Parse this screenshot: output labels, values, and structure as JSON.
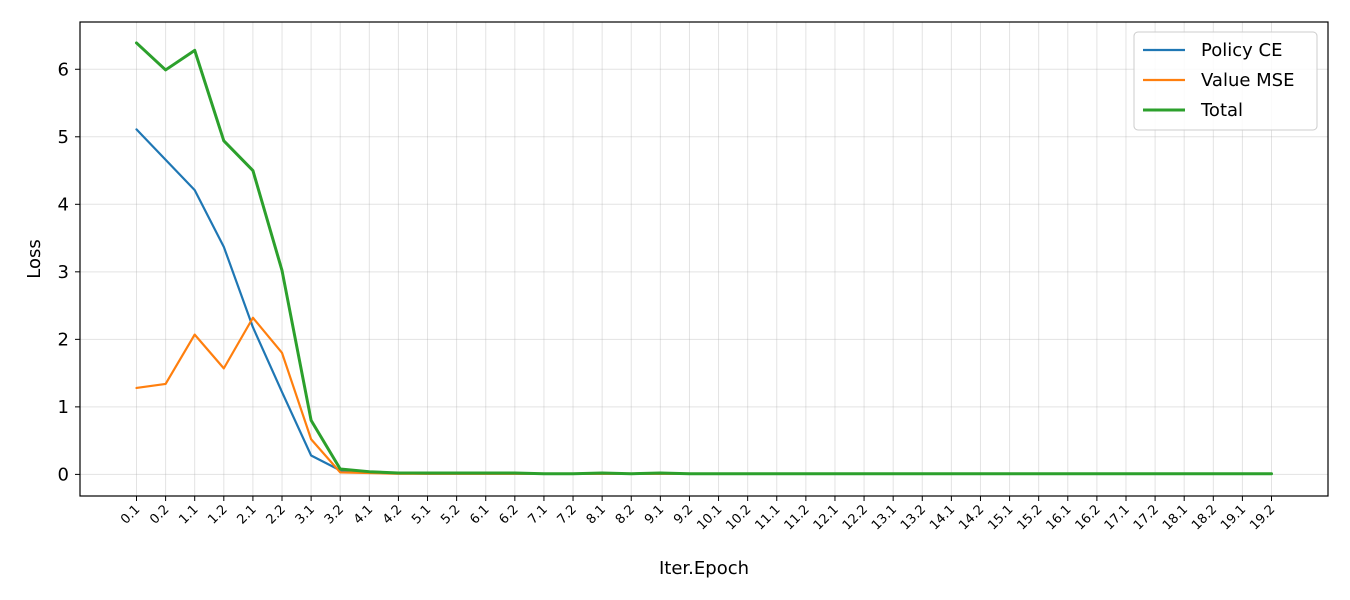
{
  "chart_data": {
    "type": "line",
    "title": "",
    "xlabel": "Iter.Epoch",
    "ylabel": "Loss",
    "ylim": [
      -0.32,
      6.7
    ],
    "yticks": [
      0,
      1,
      2,
      3,
      4,
      5,
      6
    ],
    "grid": true,
    "legend_position": "top-right",
    "categories": [
      "0.1",
      "0.2",
      "1.1",
      "1.2",
      "2.1",
      "2.2",
      "3.1",
      "3.2",
      "4.1",
      "4.2",
      "5.1",
      "5.2",
      "6.1",
      "6.2",
      "7.1",
      "7.2",
      "8.1",
      "8.2",
      "9.1",
      "9.2",
      "10.1",
      "10.2",
      "11.1",
      "11.2",
      "12.1",
      "12.2",
      "13.1",
      "13.2",
      "14.1",
      "14.2",
      "15.1",
      "15.2",
      "16.1",
      "16.2",
      "17.1",
      "17.2",
      "18.1",
      "18.2",
      "19.1",
      "19.2"
    ],
    "series": [
      {
        "name": "Policy CE",
        "color": "#1f77b4",
        "values": [
          5.11,
          4.66,
          4.21,
          3.37,
          2.18,
          1.22,
          0.28,
          0.06,
          0.04,
          0.02,
          0.01,
          0.01,
          0.01,
          0.01,
          0.01,
          0.01,
          0.01,
          0.01,
          0.01,
          0.01,
          0.01,
          0.01,
          0.01,
          0.01,
          0.01,
          0.01,
          0.01,
          0.01,
          0.01,
          0.01,
          0.01,
          0.01,
          0.01,
          0.01,
          0.01,
          0.01,
          0.01,
          0.01,
          0.01,
          0.01
        ]
      },
      {
        "name": "Value MSE",
        "color": "#ff7f0e",
        "values": [
          1.28,
          1.34,
          2.07,
          1.57,
          2.32,
          1.8,
          0.52,
          0.03,
          0.02,
          0.01,
          0.01,
          0.01,
          0.01,
          0.01,
          0.01,
          0.01,
          0.01,
          0.01,
          0.01,
          0.01,
          0.01,
          0.01,
          0.01,
          0.01,
          0.01,
          0.01,
          0.01,
          0.01,
          0.01,
          0.01,
          0.01,
          0.01,
          0.01,
          0.01,
          0.01,
          0.01,
          0.01,
          0.01,
          0.01,
          0.01
        ]
      },
      {
        "name": "Total",
        "color": "#2ca02c",
        "values": [
          6.39,
          5.99,
          6.28,
          4.94,
          4.5,
          3.02,
          0.8,
          0.08,
          0.04,
          0.02,
          0.02,
          0.02,
          0.02,
          0.02,
          0.01,
          0.01,
          0.02,
          0.01,
          0.02,
          0.01,
          0.01,
          0.01,
          0.01,
          0.01,
          0.01,
          0.01,
          0.01,
          0.01,
          0.01,
          0.01,
          0.01,
          0.01,
          0.01,
          0.01,
          0.01,
          0.01,
          0.01,
          0.01,
          0.01,
          0.01
        ]
      }
    ]
  }
}
